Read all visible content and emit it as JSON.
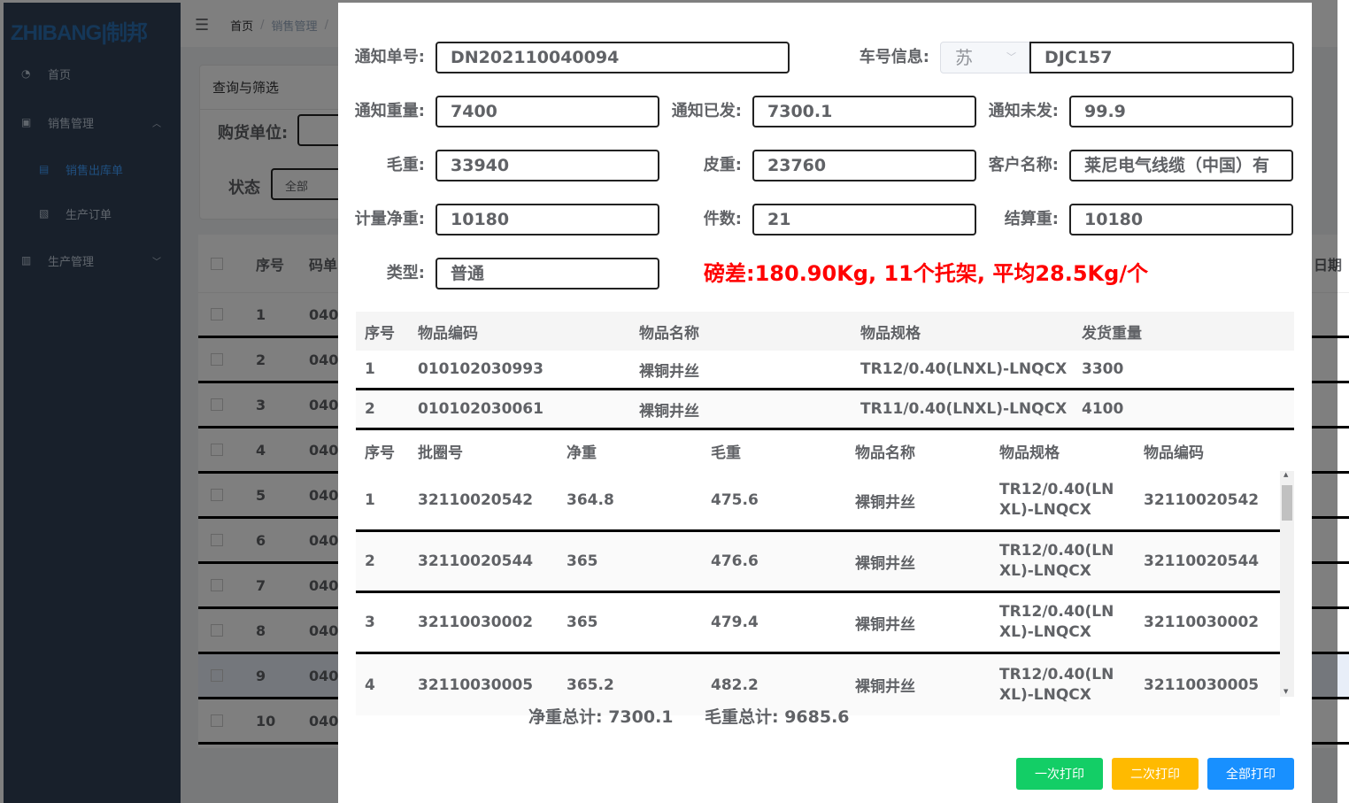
{
  "sidebar": {
    "logo": "ZHIBANG|制邦",
    "items": [
      {
        "label": "首页",
        "icon": "dashboard-icon"
      },
      {
        "label": "销售管理",
        "icon": "sales-icon"
      },
      {
        "label": "销售出库单",
        "icon": "document-icon"
      },
      {
        "label": "生产订单",
        "icon": "order-icon"
      },
      {
        "label": "生产管理",
        "icon": "production-icon"
      }
    ]
  },
  "topbar": {
    "breadcrumb": [
      "首页",
      "/",
      "销售管理",
      "/"
    ]
  },
  "filter": {
    "title": "查询与筛选",
    "buyer_label": "购货单位:",
    "status_label": "状态",
    "status_value": "全部"
  },
  "bg_table": {
    "headers": [
      "序号",
      "码单"
    ],
    "rows": [
      "1",
      "2",
      "3",
      "4",
      "5",
      "6",
      "7",
      "8",
      "9",
      "10"
    ],
    "code_prefix": "040",
    "right_header_partial": "日期"
  },
  "form": {
    "notice_no_label": "通知单号:",
    "notice_no": "DN202110040094",
    "vehicle_label": "车号信息:",
    "vehicle_province": "苏",
    "vehicle_no": "DJC157",
    "notice_weight_label": "通知重量:",
    "notice_weight": "7400",
    "sent_label": "通知已发:",
    "sent": "7300.1",
    "unsent_label": "通知未发:",
    "unsent": "99.9",
    "gross_label": "毛重:",
    "gross": "33940",
    "tare_label": "皮重:",
    "tare": "23760",
    "customer_label": "客户名称:",
    "customer": "莱尼电气线缆（中国）有",
    "net_label": "计量净重:",
    "net": "10180",
    "pieces_label": "件数:",
    "pieces": "21",
    "settle_label": "结算重:",
    "settle": "10180",
    "type_label": "类型:",
    "type": "普通"
  },
  "warning": "磅差:180.90Kg, 11个托架, 平均28.5Kg/个",
  "items_table": {
    "headers": [
      "序号",
      "物品编码",
      "物品名称",
      "物品规格",
      "发货重量"
    ],
    "rows": [
      [
        "1",
        "010102030993",
        "裸铜井丝",
        "TR12/0.40(LNXL)-LNQCX",
        "3300"
      ],
      [
        "2",
        "010102030061",
        "裸铜井丝",
        "TR11/0.40(LNXL)-LNQCX",
        "4100"
      ]
    ]
  },
  "coil_table": {
    "headers": [
      "序号",
      "批圈号",
      "净重",
      "毛重",
      "物品名称",
      "物品规格",
      "物品编码"
    ],
    "rows": [
      [
        "1",
        "32110020542",
        "364.8",
        "475.6",
        "裸铜井丝",
        "TR12/0.40(LNXL)-LNQCX",
        "32110020542"
      ],
      [
        "2",
        "32110020544",
        "365",
        "476.6",
        "裸铜井丝",
        "TR12/0.40(LNXL)-LNQCX",
        "32110020544"
      ],
      [
        "3",
        "32110030002",
        "365",
        "479.4",
        "裸铜井丝",
        "TR12/0.40(LNXL)-LNQCX",
        "32110030002"
      ],
      [
        "4",
        "32110030005",
        "365.2",
        "482.2",
        "裸铜井丝",
        "TR12/0.40(LNXL)-LNQCX",
        "32110030005"
      ]
    ]
  },
  "totals": {
    "net": "净重总计: 7300.1",
    "gross": "毛重总计: 9685.6"
  },
  "buttons": {
    "first_print": "一次打印",
    "second_print": "二次打印",
    "all_print": "全部打印"
  },
  "colors": {
    "green": "#13ce66",
    "yellow": "#ffba00",
    "blue": "#1890ff",
    "warning": "#ff0000",
    "sidebar": "#304156"
  }
}
